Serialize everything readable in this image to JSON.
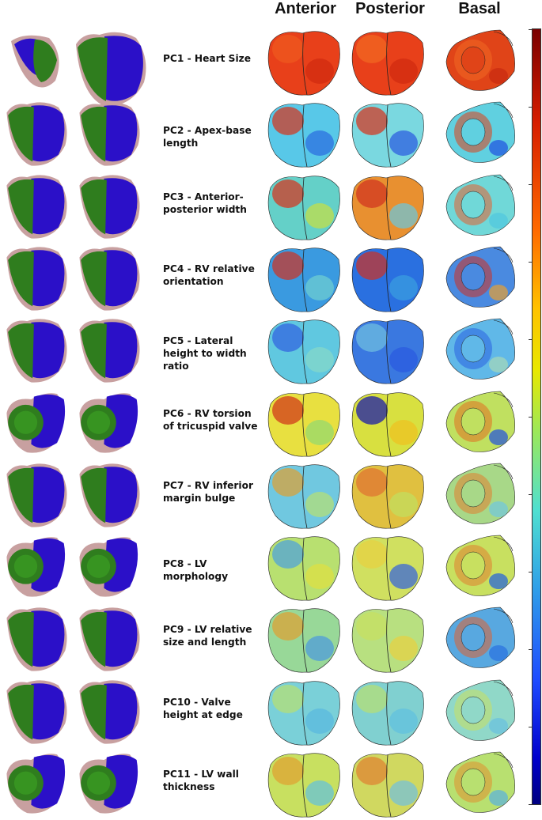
{
  "columns": {
    "anterior": "Anterior",
    "posterior": "Posterior",
    "basal": "Basal"
  },
  "rows": [
    {
      "label": "PC1 - Heart Size",
      "type": "a"
    },
    {
      "label": "PC2 - Apex-base length",
      "type": "b"
    },
    {
      "label": "PC3 - Anterior-posterior width",
      "type": "b"
    },
    {
      "label": "PC4 - RV relative orientation",
      "type": "b"
    },
    {
      "label": "PC5 - Lateral height to width ratio",
      "type": "b"
    },
    {
      "label": "PC6 - RV torsion of tricuspid valve",
      "type": "c"
    },
    {
      "label": "PC7 - RV inferior margin bulge",
      "type": "b"
    },
    {
      "label": "PC8 - LV morphology",
      "type": "c"
    },
    {
      "label": "PC9 - LV relative size and length",
      "type": "b"
    },
    {
      "label": "PC10 - Valve height at edge",
      "type": "b"
    },
    {
      "label": "PC11 - LV wall thickness",
      "type": "c"
    }
  ],
  "colors": {
    "lv_green": "#2f7d1e",
    "rv_blue": "#2b10c8",
    "pericardium": "#c8a0a0",
    "heatmap_high": "#c82010",
    "heatmap_mid": "#e8e040",
    "heatmap_low": "#1030e0"
  }
}
